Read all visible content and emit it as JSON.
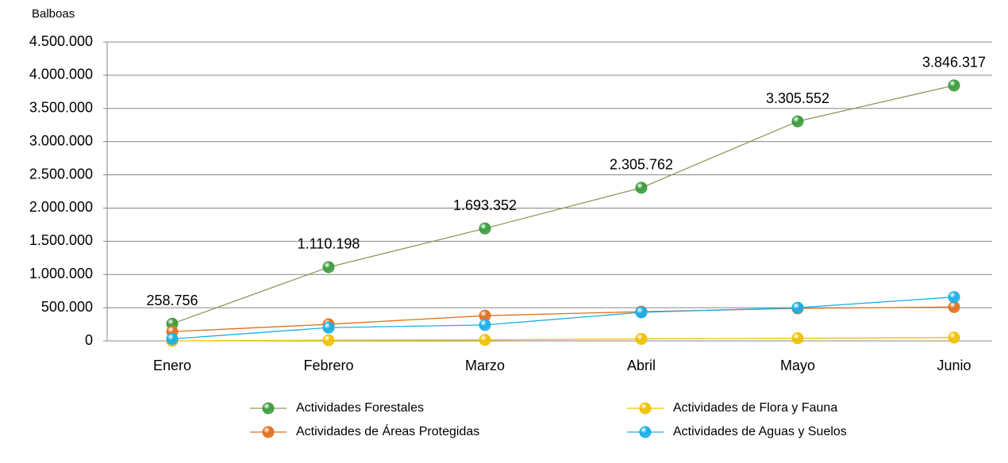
{
  "chart_data": {
    "type": "line",
    "y_axis_label": "Balboas",
    "categories": [
      "Enero",
      "Febrero",
      "Marzo",
      "Abril",
      "Mayo",
      "Junio"
    ],
    "series": [
      {
        "name": "Actividades Forestales",
        "color": "#3c9b3c",
        "line_color": "#8e9a5e",
        "values": [
          258756,
          1110198,
          1693352,
          2305762,
          3305552,
          3846317
        ],
        "value_labels": [
          "258.756",
          "1.110.198",
          "1.693.352",
          "2.305.762",
          "3.305.552",
          "3.846.317"
        ]
      },
      {
        "name": "Actividades de Flora y Fauna",
        "color": "#f0c000",
        "line_color": "#f0c000",
        "values": [
          0,
          10000,
          15000,
          30000,
          40000,
          50000
        ]
      },
      {
        "name": "Actividades de Áreas Protegidas",
        "color": "#e0701e",
        "line_color": "#e0701e",
        "values": [
          140000,
          250000,
          380000,
          440000,
          490000,
          510000
        ]
      },
      {
        "name": "Actividades de Aguas y Suelos",
        "color": "#1aaee6",
        "line_color": "#1aaee6",
        "values": [
          30000,
          200000,
          240000,
          430000,
          500000,
          660000
        ]
      }
    ],
    "ylim": [
      0,
      4500000
    ],
    "yticks": [
      0,
      {
        "value": 500000,
        "label": "500.000"
      },
      {
        "value": 1000000,
        "label": "1.000.000"
      },
      {
        "value": 1500000,
        "label": "1.500.000"
      },
      {
        "value": 2000000,
        "label": "2.000.000"
      },
      {
        "value": 2500000,
        "label": "2.500.000"
      },
      {
        "value": 3000000,
        "label": "3.000.000"
      },
      {
        "value": 3500000,
        "label": "3.500.000"
      },
      {
        "value": 4000000,
        "label": "4.000.000"
      },
      {
        "value": 4500000,
        "label": "4.500.000"
      }
    ],
    "grid": true,
    "legend": "bottom"
  }
}
